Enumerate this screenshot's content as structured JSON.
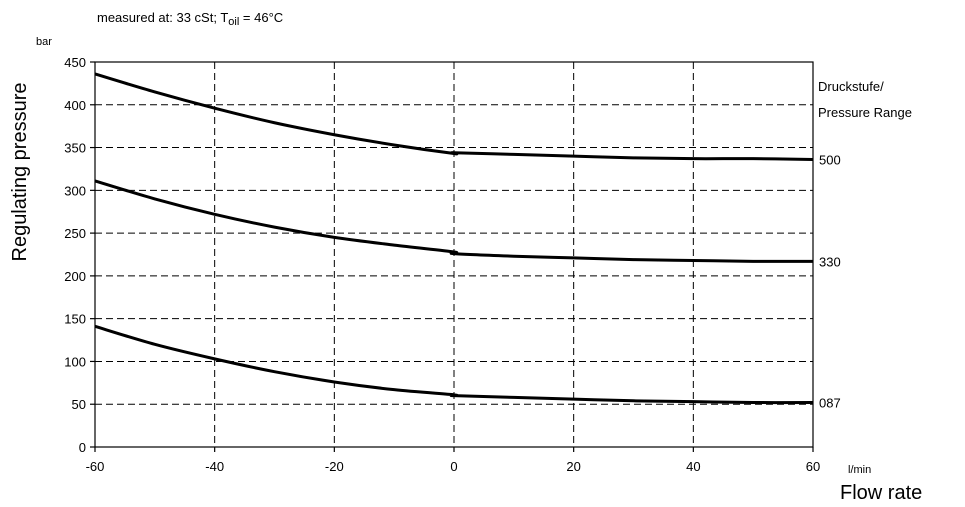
{
  "chart_data": {
    "type": "line",
    "note_prefix": "measured at:  33 cSt; T",
    "note_sub": "oil",
    "note_suffix": "  = 46°C",
    "y_unit": "bar",
    "ylabel": "Regulating pressure",
    "x_unit": "l/min",
    "xlabel": "Flow rate",
    "legend_title_1": "Druckstufe/",
    "legend_title_2": "Pressure Range",
    "xlim": [
      -60,
      60
    ],
    "ylim": [
      0,
      450
    ],
    "x_ticks": [
      -60,
      -40,
      -20,
      0,
      20,
      40,
      60
    ],
    "y_ticks": [
      0,
      50,
      100,
      150,
      200,
      250,
      300,
      350,
      400,
      450
    ],
    "grid": true,
    "series": [
      {
        "name": "500",
        "x": [
          -60,
          -50,
          -40,
          -30,
          -20,
          -10,
          0,
          0,
          10,
          20,
          30,
          40,
          50,
          60
        ],
        "y": [
          436,
          415,
          396,
          379,
          365,
          353,
          343,
          344,
          342,
          340,
          338,
          337,
          337,
          336
        ]
      },
      {
        "name": "330",
        "x": [
          -60,
          -50,
          -40,
          -30,
          -20,
          -10,
          0,
          0,
          10,
          20,
          30,
          40,
          50,
          60
        ],
        "y": [
          311,
          290,
          272,
          257,
          245,
          236,
          228,
          226,
          223,
          221,
          219,
          218,
          217,
          217
        ]
      },
      {
        "name": "087",
        "x": [
          -60,
          -50,
          -40,
          -30,
          -20,
          -10,
          0,
          0,
          10,
          20,
          30,
          40,
          50,
          60
        ],
        "y": [
          141,
          120,
          103,
          88,
          76,
          67,
          61,
          60,
          58,
          56,
          54,
          53,
          52,
          52
        ]
      }
    ]
  }
}
